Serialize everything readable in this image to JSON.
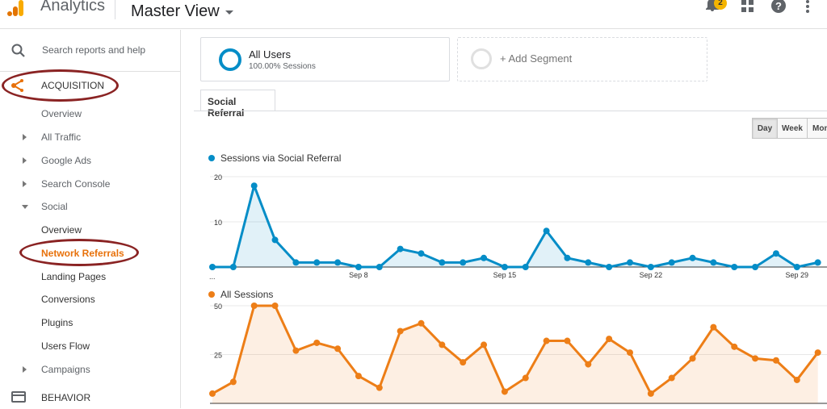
{
  "header": {
    "app_title": "Analytics",
    "view_title": "Master View",
    "notification_count": "2"
  },
  "sidebar": {
    "search_placeholder": "Search reports and help",
    "acquisition": "ACQUISITION",
    "items": [
      {
        "label": "Overview"
      },
      {
        "label": "All Traffic"
      },
      {
        "label": "Google Ads"
      },
      {
        "label": "Search Console"
      },
      {
        "label": "Social"
      },
      {
        "label": "Overview"
      },
      {
        "label": "Network Referrals"
      },
      {
        "label": "Landing Pages"
      },
      {
        "label": "Conversions"
      },
      {
        "label": "Plugins"
      },
      {
        "label": "Users Flow"
      },
      {
        "label": "Campaigns"
      }
    ],
    "behavior": "BEHAVIOR"
  },
  "segments": {
    "all_users_title": "All Users",
    "all_users_sub": "100.00% Sessions",
    "add_segment": "+ Add Segment"
  },
  "tab_label": "Social Referral",
  "range": {
    "day": "Day",
    "week": "Week",
    "month": "Mon"
  },
  "colors": {
    "blue": "#058dc7",
    "orange": "#ed7e17"
  },
  "chart_data": [
    {
      "type": "line",
      "series": [
        {
          "name": "Sessions via Social Referral",
          "color": "#058dc7",
          "values": [
            0,
            0,
            18,
            6,
            1,
            1,
            1,
            0,
            0,
            4,
            3,
            1,
            1,
            2,
            0,
            0,
            8,
            2,
            1,
            0,
            1,
            0,
            1,
            2,
            1,
            0,
            0,
            3,
            0,
            1
          ]
        }
      ],
      "y_ticks": [
        "20",
        "10"
      ],
      "x_start_label": "...",
      "x_labels": [
        "Sep 8",
        "Sep 15",
        "Sep 22",
        "Sep 29"
      ],
      "ylim": [
        0,
        20
      ]
    },
    {
      "type": "line",
      "series": [
        {
          "name": "All Sessions",
          "color": "#ed7e17",
          "values": [
            5,
            11,
            50,
            50,
            27,
            31,
            28,
            14,
            8,
            37,
            41,
            30,
            21,
            30,
            6,
            13,
            32,
            32,
            20,
            33,
            26,
            5,
            13,
            23,
            39,
            29,
            23,
            22,
            12,
            26
          ]
        }
      ],
      "y_ticks": [
        "50",
        "25"
      ],
      "ylim": [
        0,
        50
      ]
    }
  ]
}
